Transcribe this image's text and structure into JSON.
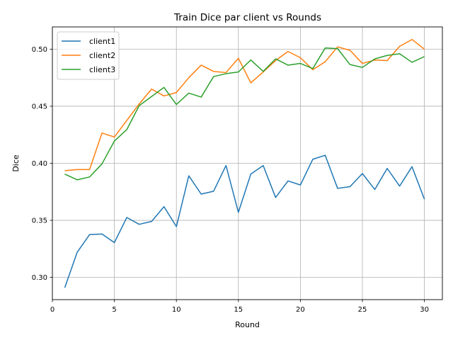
{
  "chart_data": {
    "type": "line",
    "title": "Train Dice par client vs Rounds",
    "xlabel": "Round",
    "ylabel": "Dice",
    "xlim": [
      0,
      31.45
    ],
    "ylim": [
      0.2805,
      0.5195
    ],
    "xticks": [
      0,
      5,
      10,
      15,
      20,
      25,
      30
    ],
    "yticks": [
      0.3,
      0.35,
      0.4,
      0.45,
      0.5
    ],
    "grid": true,
    "legend": "top-left",
    "x": [
      1,
      2,
      3,
      4,
      5,
      6,
      7,
      8,
      9,
      10,
      11,
      12,
      13,
      14,
      15,
      16,
      17,
      18,
      19,
      20,
      21,
      22,
      23,
      24,
      25,
      26,
      27,
      28,
      29,
      30
    ],
    "series": [
      {
        "name": "client1",
        "color": "#1f77b4",
        "values": [
          0.291,
          0.322,
          0.3375,
          0.338,
          0.3305,
          0.3525,
          0.3465,
          0.349,
          0.362,
          0.3445,
          0.389,
          0.373,
          0.3755,
          0.398,
          0.357,
          0.3905,
          0.398,
          0.37,
          0.3845,
          0.381,
          0.4035,
          0.407,
          0.378,
          0.3795,
          0.391,
          0.377,
          0.3955,
          0.38,
          0.397,
          0.3685
        ]
      },
      {
        "name": "client2",
        "color": "#ff7f0e",
        "values": [
          0.3935,
          0.3945,
          0.3945,
          0.4265,
          0.423,
          0.4375,
          0.452,
          0.465,
          0.459,
          0.462,
          0.475,
          0.486,
          0.4805,
          0.4795,
          0.492,
          0.4705,
          0.48,
          0.49,
          0.498,
          0.4925,
          0.482,
          0.489,
          0.502,
          0.499,
          0.4875,
          0.4905,
          0.49,
          0.5025,
          0.5085,
          0.5
        ]
      },
      {
        "name": "client3",
        "color": "#2ca02c",
        "values": [
          0.3905,
          0.3855,
          0.388,
          0.3995,
          0.4195,
          0.4295,
          0.4505,
          0.4585,
          0.4665,
          0.4515,
          0.4615,
          0.458,
          0.476,
          0.4785,
          0.48,
          0.4905,
          0.4805,
          0.4915,
          0.486,
          0.4875,
          0.483,
          0.501,
          0.5005,
          0.4865,
          0.484,
          0.4915,
          0.4945,
          0.496,
          0.4885,
          0.4935
        ]
      }
    ]
  }
}
